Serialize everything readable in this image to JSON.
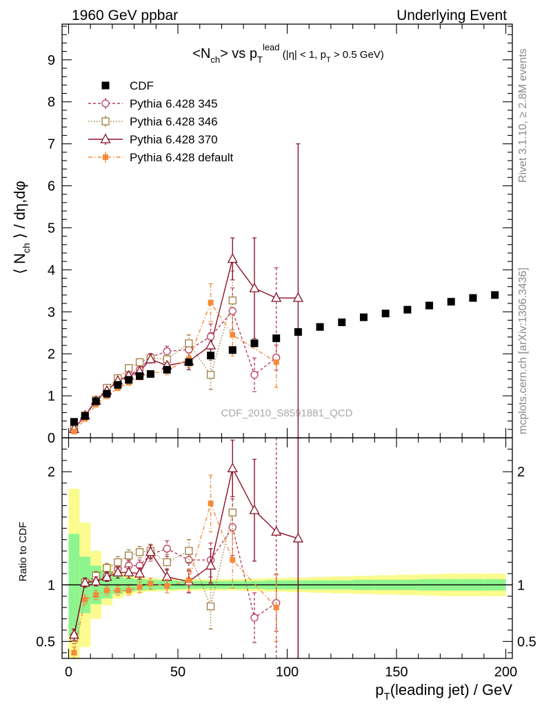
{
  "header": {
    "left": "1960 GeV ppbar",
    "right": "Underlying Event"
  },
  "side_labels": {
    "top": "Rivet 3.1.10, ≥ 2.8M events",
    "bottom": "mcplots.cern.ch [arXiv:1306.3436]"
  },
  "watermark": "CDF_2010_S8591881_QCD",
  "chart_data": [
    {
      "type": "scatter",
      "panel": "main",
      "title": "<N_ch> vs p_T^lead (|η| < 1, p_T > 0.5 GeV)",
      "xlabel": "p_T(leading jet) / GeV",
      "ylabel": "⟨ N_ch ⟩ / dη,dφ",
      "xlim": [
        -3,
        203
      ],
      "ylim": [
        0,
        9.85
      ],
      "xticks": [
        0,
        50,
        100,
        150,
        200
      ],
      "yticks": [
        0,
        1,
        2,
        3,
        4,
        5,
        6,
        7,
        8,
        9
      ],
      "legend_position": "top-left",
      "series": [
        {
          "name": "CDF",
          "color": "#000000",
          "marker": "filled-square",
          "x": [
            2.5,
            7.5,
            12.5,
            17.5,
            22.5,
            27.5,
            32.5,
            37.5,
            45,
            55,
            65,
            75,
            85,
            95,
            105,
            115,
            125,
            135,
            145,
            155,
            165,
            175,
            185,
            195
          ],
          "y": [
            0.38,
            0.52,
            0.87,
            1.05,
            1.26,
            1.38,
            1.47,
            1.52,
            1.62,
            1.8,
            1.96,
            2.09,
            2.25,
            2.37,
            2.52,
            2.64,
            2.75,
            2.87,
            2.96,
            3.05,
            3.15,
            3.24,
            3.33,
            3.4
          ]
        },
        {
          "name": "Pythia 6.428 345",
          "color": "#b83c5c",
          "marker": "open-circle",
          "dash": "4,3",
          "x": [
            2.5,
            7.5,
            12.5,
            17.5,
            22.5,
            27.5,
            32.5,
            37.5,
            45,
            55,
            65,
            75,
            85,
            95
          ],
          "y": [
            0.21,
            0.53,
            0.86,
            1.12,
            1.34,
            1.5,
            1.62,
            1.92,
            2.06,
            2.1,
            2.41,
            3.02,
            1.5,
            1.91
          ],
          "err": [
            0.03,
            0.03,
            0.03,
            0.04,
            0.05,
            0.06,
            0.07,
            0.09,
            0.12,
            0.18,
            0.3,
            0.55,
            0.4,
            0.3
          ]
        },
        {
          "name": "Pythia 6.428 346",
          "color": "#a07a3e",
          "marker": "open-square",
          "dash": "1.5,2.5",
          "x": [
            2.5,
            7.5,
            12.5,
            17.5,
            22.5,
            27.5,
            32.5,
            37.5,
            45,
            55,
            65,
            75
          ],
          "y": [
            0.2,
            0.53,
            0.9,
            1.19,
            1.42,
            1.66,
            1.8,
            1.9,
            1.87,
            2.25,
            1.5,
            3.27
          ],
          "err": [
            0.03,
            0.03,
            0.03,
            0.04,
            0.05,
            0.06,
            0.07,
            0.08,
            0.12,
            0.2,
            0.35,
            0.7
          ]
        },
        {
          "name": "Pythia 6.428 370",
          "color": "#8b1028",
          "marker": "open-triangle",
          "dash": "",
          "x": [
            2.5,
            7.5,
            12.5,
            17.5,
            22.5,
            27.5,
            32.5,
            37.5,
            45,
            55,
            65,
            75,
            85,
            95,
            105
          ],
          "y": [
            0.21,
            0.53,
            0.88,
            1.12,
            1.36,
            1.48,
            1.58,
            1.87,
            1.72,
            1.82,
            2.2,
            4.26,
            3.56,
            3.33,
            3.33
          ],
          "err": [
            0.03,
            0.03,
            0.03,
            0.04,
            0.05,
            0.06,
            0.07,
            0.09,
            0.12,
            0.2,
            0.3,
            0.5,
            1.2,
            0.0,
            3.67
          ]
        },
        {
          "name": "Pythia 6.428 default",
          "color": "#f58a3a",
          "marker": "filled-small-square",
          "dash": "6,3,1.5,3",
          "x": [
            2.5,
            7.5,
            12.5,
            17.5,
            22.5,
            27.5,
            32.5,
            37.5,
            45,
            55,
            65,
            75,
            95
          ],
          "y": [
            0.15,
            0.45,
            0.79,
            0.99,
            1.18,
            1.31,
            1.44,
            1.53,
            1.6,
            1.88,
            3.22,
            2.45,
            1.8
          ],
          "err": [
            0.02,
            0.02,
            0.03,
            0.03,
            0.04,
            0.05,
            0.06,
            0.07,
            0.1,
            0.2,
            0.45,
            0.5,
            0.6
          ]
        }
      ]
    },
    {
      "type": "scatter",
      "panel": "ratio",
      "ylabel": "Ratio to CDF",
      "xlabel": "p_T(leading jet) / GeV",
      "xlim": [
        -3,
        203
      ],
      "ylim": [
        0.35,
        2.3
      ],
      "xticks": [
        0,
        50,
        100,
        150,
        200
      ],
      "yticks": [
        0.5,
        1,
        2
      ],
      "bands": {
        "x_edges": [
          0,
          5,
          10,
          15,
          20,
          25,
          30,
          35,
          40,
          50,
          60,
          70,
          80,
          90,
          100,
          110,
          120,
          130,
          140,
          150,
          160,
          170,
          180,
          190,
          200
        ],
        "inner_half": [
          0.45,
          0.25,
          0.17,
          0.12,
          0.08,
          0.06,
          0.05,
          0.045,
          0.04,
          0.035,
          0.035,
          0.035,
          0.035,
          0.04,
          0.04,
          0.04,
          0.04,
          0.045,
          0.045,
          0.045,
          0.05,
          0.05,
          0.05,
          0.05
        ],
        "outer_half": [
          0.85,
          0.55,
          0.3,
          0.18,
          0.12,
          0.09,
          0.07,
          0.06,
          0.055,
          0.05,
          0.05,
          0.05,
          0.055,
          0.06,
          0.065,
          0.07,
          0.075,
          0.08,
          0.085,
          0.09,
          0.095,
          0.1,
          0.1,
          0.1
        ],
        "inner_color": "#8ef58e",
        "outer_color": "#fbfb8e"
      },
      "series": [
        {
          "name": "Pythia 6.428 345",
          "color": "#b83c5c",
          "x": [
            2.5,
            7.5,
            12.5,
            17.5,
            22.5,
            27.5,
            32.5,
            37.5,
            45,
            55,
            65,
            75,
            85,
            95
          ],
          "y": [
            0.55,
            1.02,
            1.05,
            1.08,
            1.14,
            1.17,
            1.17,
            1.27,
            1.32,
            1.22,
            1.22,
            1.51,
            0.71,
            0.84
          ],
          "err": [
            0.05,
            0.04,
            0.04,
            0.04,
            0.05,
            0.05,
            0.05,
            0.06,
            0.07,
            0.1,
            0.15,
            0.25,
            0.22,
            0.25
          ]
        },
        {
          "name": "Pythia 6.428 346",
          "color": "#a07a3e",
          "x": [
            2.5,
            7.5,
            12.5,
            17.5,
            22.5,
            27.5,
            32.5,
            37.5,
            45,
            55,
            65,
            75
          ],
          "y": [
            0.53,
            1.02,
            1.08,
            1.15,
            1.2,
            1.26,
            1.29,
            1.3,
            1.2,
            1.3,
            0.81,
            1.64
          ],
          "err": [
            0.05,
            0.04,
            0.04,
            0.04,
            0.05,
            0.05,
            0.05,
            0.06,
            0.07,
            0.1,
            0.2,
            0.4
          ]
        },
        {
          "name": "Pythia 6.428 370",
          "color": "#8b1028",
          "x": [
            2.5,
            7.5,
            12.5,
            17.5,
            22.5,
            27.5,
            32.5,
            37.5,
            45,
            55,
            65,
            75,
            85,
            95,
            105
          ],
          "y": [
            0.56,
            1.02,
            1.03,
            1.07,
            1.11,
            1.11,
            1.1,
            1.29,
            1.07,
            1.03,
            1.17,
            2.03,
            1.66,
            1.47,
            1.41
          ],
          "err": [
            0.05,
            0.04,
            0.04,
            0.04,
            0.05,
            0.05,
            0.05,
            0.06,
            0.07,
            0.1,
            0.15,
            0.25,
            0.45,
            0.0,
            1.5
          ]
        },
        {
          "name": "Pythia 6.428 default",
          "color": "#f58a3a",
          "x": [
            2.5,
            7.5,
            12.5,
            17.5,
            22.5,
            27.5,
            32.5,
            37.5,
            45,
            55,
            65,
            75,
            95
          ],
          "y": [
            0.4,
            0.87,
            0.91,
            0.95,
            0.95,
            0.95,
            0.98,
            1.01,
            0.99,
            1.04,
            1.72,
            1.22,
            0.8
          ],
          "err": [
            0.05,
            0.04,
            0.04,
            0.04,
            0.04,
            0.04,
            0.05,
            0.05,
            0.06,
            0.1,
            0.25,
            0.25,
            0.3
          ]
        }
      ]
    }
  ]
}
